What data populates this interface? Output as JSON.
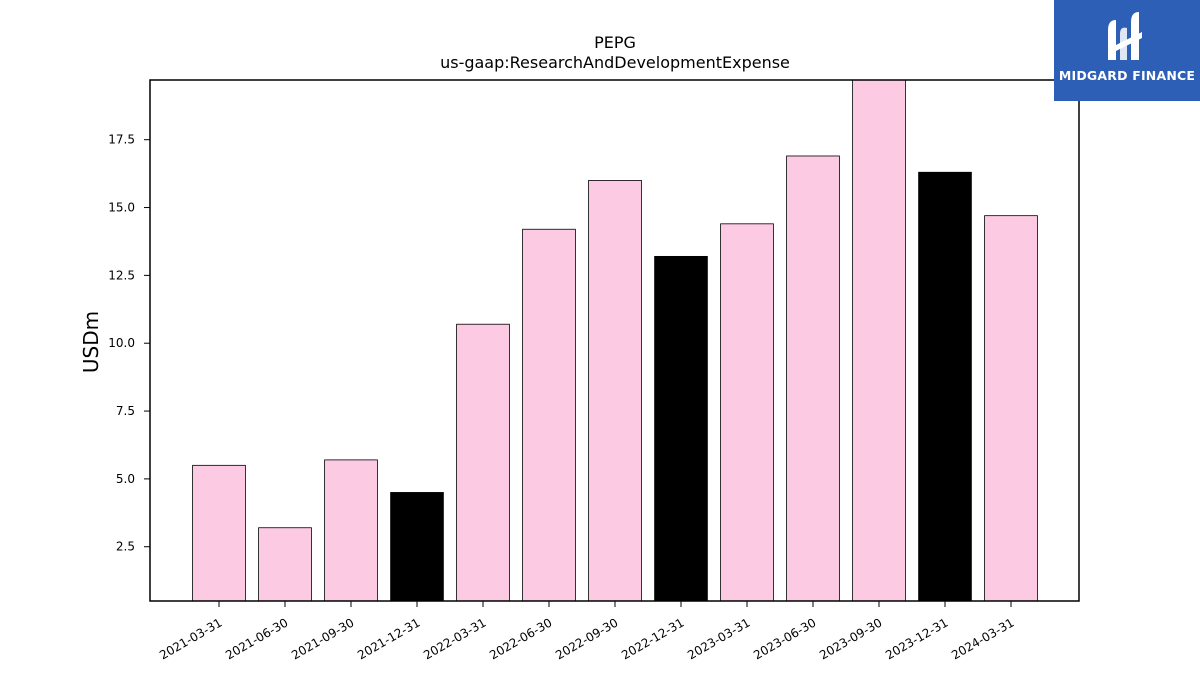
{
  "chart_data": {
    "type": "bar",
    "title": "PEPG",
    "subtitle": "us-gaap:ResearchAndDevelopmentExpense",
    "ylabel": "USDm",
    "xlabel": "",
    "ylim": [
      0.5,
      19.7
    ],
    "yticks": [
      2.5,
      5.0,
      7.5,
      10.0,
      12.5,
      15.0,
      17.5
    ],
    "categories": [
      "2021-03-31",
      "2021-06-30",
      "2021-09-30",
      "2021-12-31",
      "2022-03-31",
      "2022-06-30",
      "2022-09-30",
      "2022-12-31",
      "2023-03-31",
      "2023-06-30",
      "2023-09-30",
      "2023-12-31",
      "2024-03-31"
    ],
    "values": [
      5.5,
      3.2,
      5.7,
      4.5,
      10.7,
      14.2,
      16.0,
      13.2,
      14.4,
      16.9,
      19.7,
      16.3,
      14.7
    ],
    "bar_colors": [
      "#fccbe3",
      "#fccbe3",
      "#fccbe3",
      "#000000",
      "#fccbe3",
      "#fccbe3",
      "#fccbe3",
      "#000000",
      "#fccbe3",
      "#fccbe3",
      "#fccbe3",
      "#000000",
      "#fccbe3"
    ],
    "grid": false
  },
  "logo": {
    "text": "MIDGARD FINANCE",
    "background": "#2d5fb6",
    "icon": "midgard-logo-icon"
  }
}
